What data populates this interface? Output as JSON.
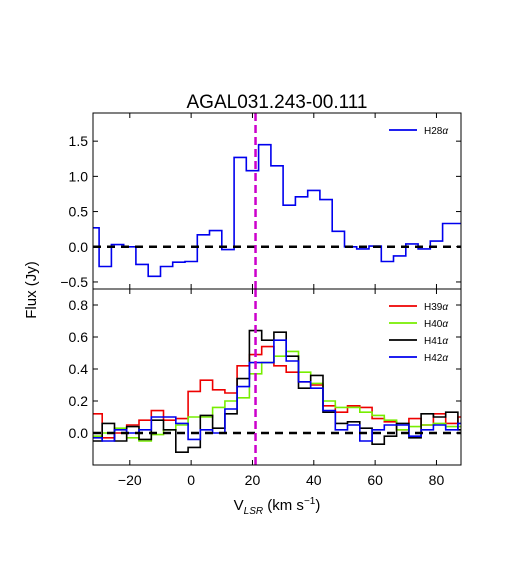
{
  "chart_data": [
    {
      "type": "line",
      "title": "AGAL031.243-00.111",
      "xlabel": "V_LSR (km s^-1)",
      "ylabel": "Flux (Jy)",
      "xlim": [
        -32,
        88
      ],
      "ylim": [
        -0.6,
        1.9
      ],
      "grid": false,
      "legend": "top-right",
      "x_ticks": [
        -20,
        0,
        20,
        40,
        60,
        80
      ],
      "x_tick_labels": [
        "−20",
        "0",
        "20",
        "40",
        "60",
        "80"
      ],
      "y_ticks": [
        -0.5,
        0.0,
        0.5,
        1.0,
        1.5
      ],
      "y_tick_labels": [
        "−0.5",
        "0.0",
        "0.5",
        "1.0",
        "1.5"
      ],
      "vline": {
        "x": 21,
        "color": "#cc00cc",
        "style": "dashed"
      },
      "hline": {
        "y": 0,
        "color": "#000000",
        "style": "dashed"
      },
      "series": [
        {
          "name": "H28α",
          "color": "#0000ee",
          "step": "mid",
          "x": [
            -32,
            -28,
            -24,
            -20,
            -16,
            -12,
            -8,
            -4,
            0,
            4,
            8,
            12,
            16,
            20,
            24,
            28,
            32,
            36,
            40,
            44,
            48,
            52,
            56,
            60,
            64,
            68,
            72,
            76,
            80,
            84,
            88
          ],
          "values": [
            0.27,
            -0.28,
            0.03,
            0.0,
            -0.25,
            -0.42,
            -0.28,
            -0.22,
            -0.21,
            0.17,
            0.23,
            -0.04,
            1.27,
            1.08,
            1.45,
            1.15,
            0.59,
            0.71,
            0.8,
            0.67,
            0.22,
            0.0,
            -0.03,
            0.01,
            -0.21,
            -0.13,
            0.04,
            -0.03,
            0.08,
            0.33,
            0.33
          ]
        }
      ]
    },
    {
      "type": "line",
      "xlabel": "V_LSR (km s^-1)",
      "ylabel": "Flux (Jy)",
      "xlim": [
        -32,
        88
      ],
      "ylim": [
        -0.2,
        0.9
      ],
      "grid": false,
      "legend": "top-right",
      "x_ticks": [
        -20,
        0,
        20,
        40,
        60,
        80
      ],
      "x_tick_labels": [
        "−20",
        "0",
        "20",
        "40",
        "60",
        "80"
      ],
      "y_ticks": [
        0.0,
        0.2,
        0.4,
        0.6,
        0.8
      ],
      "y_tick_labels": [
        "0.0",
        "0.2",
        "0.4",
        "0.6",
        "0.8"
      ],
      "vline": {
        "x": 21,
        "color": "#cc00cc",
        "style": "dashed"
      },
      "hline": {
        "y": 0,
        "color": "#000000",
        "style": "dashed"
      },
      "series": [
        {
          "name": "H39α",
          "color": "#ee0000",
          "step": "mid",
          "x": [
            -31,
            -27,
            -23,
            -19,
            -15,
            -11,
            -7,
            -3,
            1,
            5,
            9,
            13,
            17,
            21,
            25,
            29,
            33,
            37,
            41,
            45,
            49,
            53,
            57,
            61,
            65,
            69,
            73,
            77,
            81,
            85,
            89
          ],
          "values": [
            0.12,
            -0.03,
            0.0,
            0.05,
            0.08,
            0.14,
            0.08,
            0.09,
            0.26,
            0.33,
            0.27,
            0.25,
            0.42,
            0.49,
            0.54,
            0.42,
            0.38,
            0.32,
            0.3,
            0.17,
            0.13,
            0.17,
            0.16,
            0.09,
            0.07,
            0.02,
            0.09,
            0.05,
            0.12,
            0.06,
            0.1
          ]
        },
        {
          "name": "H40α",
          "color": "#77ee00",
          "step": "mid",
          "x": [
            -31,
            -27,
            -23,
            -19,
            -15,
            -11,
            -7,
            -3,
            1,
            5,
            9,
            13,
            17,
            21,
            25,
            29,
            33,
            37,
            41,
            45,
            49,
            53,
            57,
            61,
            65,
            69,
            73,
            77,
            81,
            85,
            89
          ],
          "values": [
            -0.02,
            0.0,
            0.03,
            -0.03,
            -0.05,
            -0.01,
            0.02,
            0.05,
            0.1,
            0.1,
            0.16,
            0.2,
            0.22,
            0.37,
            0.44,
            0.48,
            0.51,
            0.38,
            0.31,
            0.2,
            0.16,
            0.16,
            0.13,
            0.11,
            0.08,
            0.02,
            0.04,
            0.05,
            0.06,
            0.04,
            0.04
          ]
        },
        {
          "name": "H41α",
          "color": "#000000",
          "step": "mid",
          "x": [
            -31,
            -27,
            -23,
            -19,
            -15,
            -11,
            -7,
            -3,
            1,
            5,
            9,
            13,
            17,
            21,
            25,
            29,
            33,
            37,
            41,
            45,
            49,
            53,
            57,
            61,
            65,
            69,
            73,
            77,
            81,
            85,
            89
          ],
          "values": [
            -0.05,
            0.06,
            -0.05,
            0.04,
            -0.04,
            0.08,
            0.02,
            -0.12,
            -0.09,
            0.11,
            0.03,
            0.12,
            0.34,
            0.64,
            0.58,
            0.63,
            0.48,
            0.28,
            0.36,
            0.13,
            0.06,
            0.07,
            0.03,
            -0.07,
            -0.02,
            0.06,
            -0.03,
            0.12,
            0.1,
            0.13,
            0.02
          ]
        },
        {
          "name": "H42α",
          "color": "#0000ee",
          "step": "mid",
          "x": [
            -31,
            -27,
            -23,
            -19,
            -15,
            -11,
            -7,
            -3,
            1,
            5,
            9,
            13,
            17,
            21,
            25,
            29,
            33,
            37,
            41,
            45,
            49,
            53,
            57,
            61,
            65,
            69,
            73,
            77,
            81,
            85,
            89
          ],
          "values": [
            -0.03,
            -0.05,
            0.02,
            0.0,
            0.02,
            0.1,
            0.1,
            0.06,
            -0.04,
            0.02,
            0.0,
            0.15,
            0.29,
            0.44,
            0.44,
            0.58,
            0.45,
            0.32,
            0.28,
            0.14,
            0.02,
            0.05,
            -0.05,
            0.02,
            0.05,
            0.05,
            -0.02,
            0.02,
            0.05,
            0.02,
            0.06
          ]
        }
      ]
    }
  ]
}
